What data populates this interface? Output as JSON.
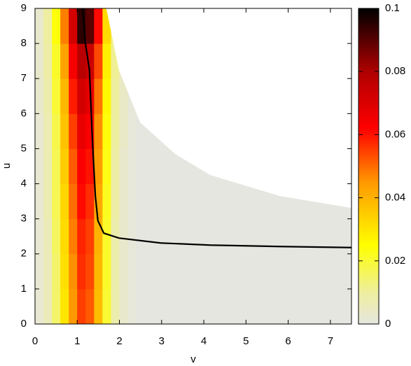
{
  "chart_data": {
    "type": "heatmap",
    "xlabel": "v",
    "ylabel": "u",
    "xlim": [
      0,
      7.5
    ],
    "ylim": [
      0,
      9
    ],
    "xticks": [
      0,
      1,
      2,
      3,
      4,
      5,
      6,
      7
    ],
    "yticks": [
      0,
      1,
      2,
      3,
      4,
      5,
      6,
      7,
      8,
      9
    ],
    "clim": [
      0,
      0.1
    ],
    "cticks": [
      0,
      0.02,
      0.04,
      0.06,
      0.08,
      0.1
    ],
    "colormap": [
      {
        "value": 0,
        "color": "#e6e6e0"
      },
      {
        "value": 0.01,
        "color": "#eeeea0"
      },
      {
        "value": 0.025,
        "color": "#ffff00"
      },
      {
        "value": 0.045,
        "color": "#ff9900"
      },
      {
        "value": 0.062,
        "color": "#ff0000"
      },
      {
        "value": 0.08,
        "color": "#b00000"
      },
      {
        "value": 0.1,
        "color": "#000000"
      }
    ],
    "heatmap": {
      "x": [
        0,
        0.2,
        0.4,
        0.6,
        0.8,
        1.0,
        1.2,
        1.4,
        1.6,
        1.8,
        2.0,
        2.2,
        2.4,
        7.5
      ],
      "y": [
        0,
        1,
        2,
        3,
        4,
        5,
        6,
        7,
        8,
        9
      ],
      "values": [
        [
          0.002,
          0.006,
          0.015,
          0.03,
          0.045,
          0.055,
          0.052,
          0.038,
          0.02,
          0.008,
          0.003,
          0.001,
          0
        ],
        [
          0.002,
          0.006,
          0.015,
          0.031,
          0.046,
          0.057,
          0.054,
          0.039,
          0.021,
          0.008,
          0.003,
          0.001,
          0
        ],
        [
          0.002,
          0.006,
          0.016,
          0.032,
          0.048,
          0.058,
          0.055,
          0.04,
          0.021,
          0.008,
          0.003,
          0.001,
          0
        ],
        [
          0.002,
          0.007,
          0.017,
          0.033,
          0.05,
          0.061,
          0.057,
          0.042,
          0.022,
          0.009,
          0.003,
          0.001,
          0
        ],
        [
          0.002,
          0.007,
          0.017,
          0.035,
          0.052,
          0.063,
          0.06,
          0.044,
          0.023,
          0.009,
          0.003,
          0.001,
          0
        ],
        [
          0.002,
          0.007,
          0.018,
          0.037,
          0.055,
          0.067,
          0.063,
          0.046,
          0.024,
          0.01,
          0.004,
          0.001,
          0
        ],
        [
          0.003,
          0.008,
          0.02,
          0.039,
          0.059,
          0.072,
          0.068,
          0.049,
          0.026,
          0.01,
          0.004,
          0.001,
          0
        ],
        [
          0.003,
          0.009,
          0.021,
          0.043,
          0.064,
          0.078,
          0.074,
          0.054,
          0.028,
          0.011,
          0.004,
          0.001,
          0
        ],
        [
          0.003,
          0.01,
          0.024,
          0.048,
          0.072,
          0.095,
          0.09,
          0.061,
          0.032,
          0.013,
          0.005,
          0.002,
          0
        ]
      ]
    },
    "boundary": {
      "x": [
        1.69,
        1.99,
        2.49,
        3.32,
        4.15,
        5.8,
        7.5
      ],
      "y": [
        9,
        7.24,
        5.75,
        4.85,
        4.25,
        3.65,
        3.31
      ]
    },
    "curve": {
      "color": "#000000",
      "x": [
        1.13,
        1.19,
        1.29,
        1.36,
        1.43,
        1.49,
        1.63,
        1.99,
        2.98,
        4.15,
        5.8,
        7.5
      ],
      "y": [
        9,
        8.04,
        7.24,
        5.25,
        3.65,
        2.95,
        2.59,
        2.45,
        2.31,
        2.25,
        2.21,
        2.18
      ]
    }
  }
}
